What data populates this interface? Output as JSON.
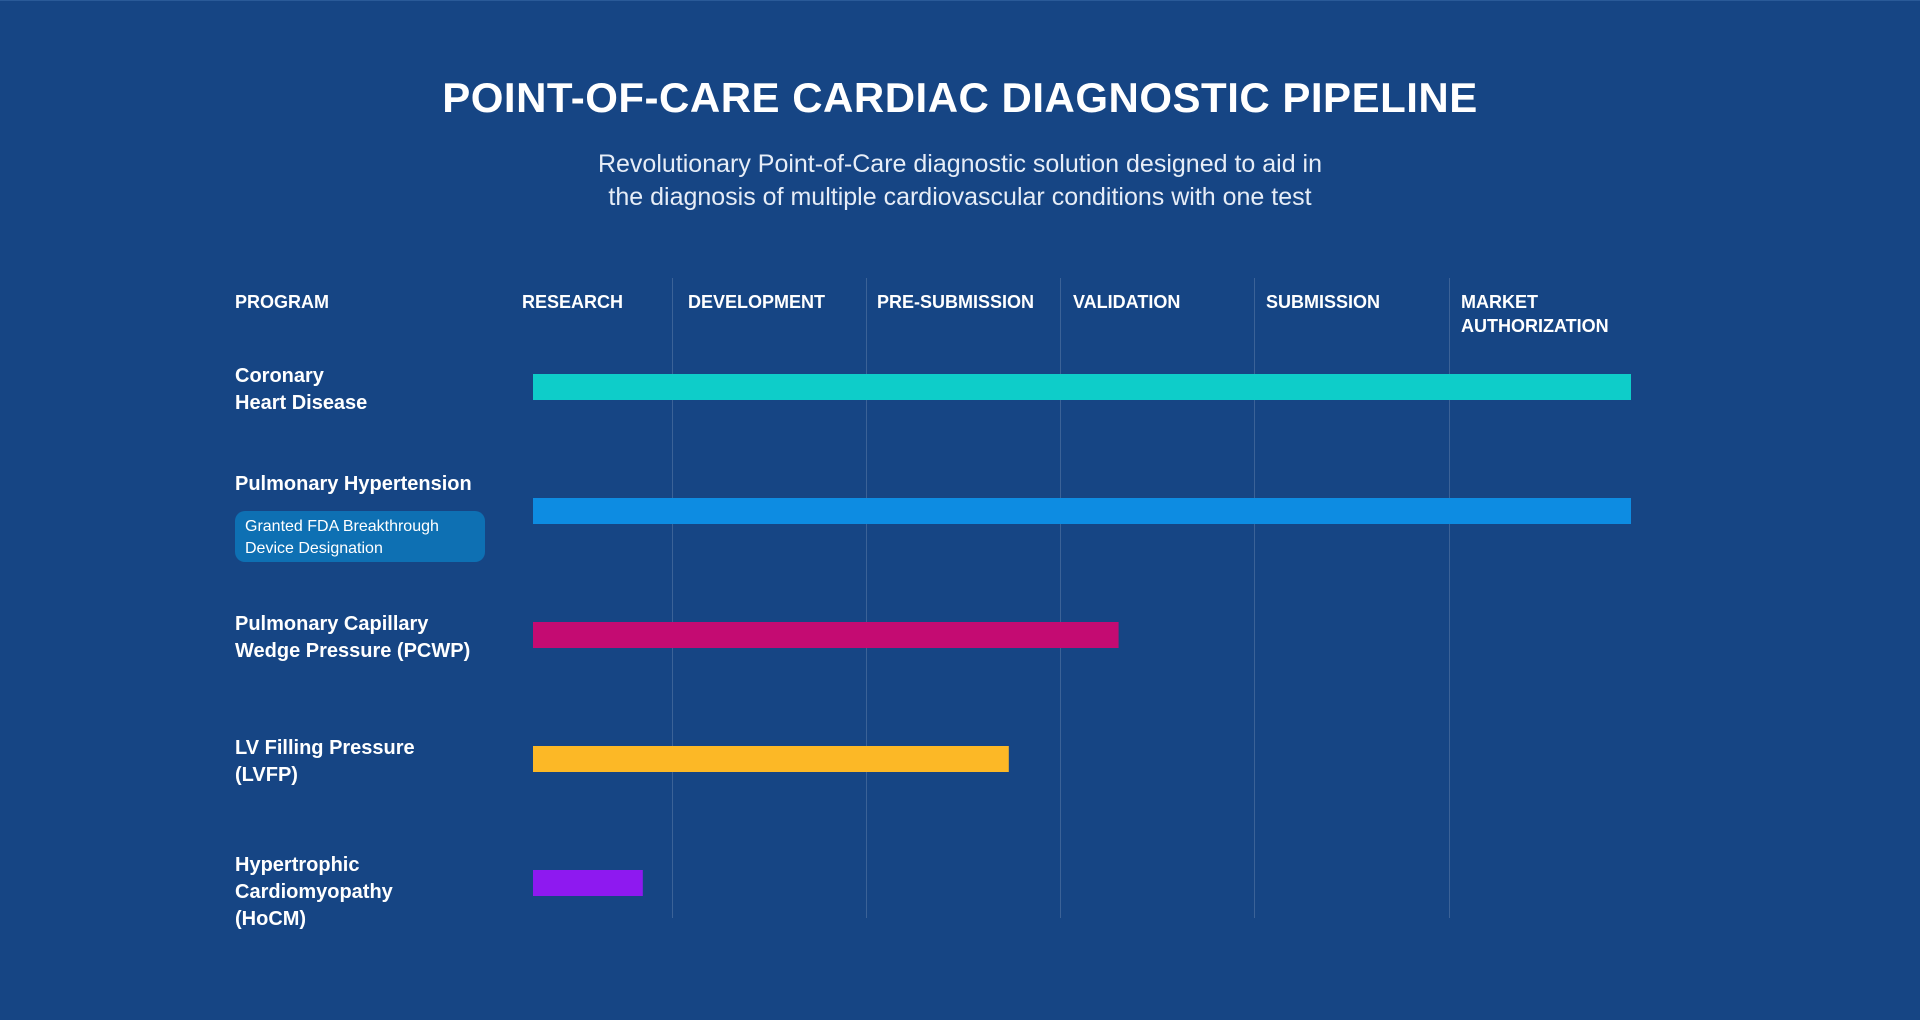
{
  "chart_data": {
    "type": "bar",
    "orientation": "horizontal",
    "title": "POINT-OF-CARE CARDIAC DIAGNOSTIC PIPELINE",
    "subtitle_lines": [
      "Revolutionary Point-of-Care diagnostic solution designed to aid in",
      "the diagnosis of multiple cardiovascular conditions with one test"
    ],
    "program_header": "PROGRAM",
    "stages": [
      {
        "label_lines": [
          "RESEARCH"
        ]
      },
      {
        "label_lines": [
          "DEVELOPMENT"
        ]
      },
      {
        "label_lines": [
          "PRE-SUBMISSION"
        ]
      },
      {
        "label_lines": [
          "VALIDATION"
        ]
      },
      {
        "label_lines": [
          "SUBMISSION"
        ]
      },
      {
        "label_lines": [
          "MARKET",
          "AUTHORIZATION"
        ]
      }
    ],
    "xlim": [
      0,
      6
    ],
    "unit": "stages completed",
    "programs": [
      {
        "name_lines": [
          "Coronary",
          "Heart Disease"
        ],
        "progress": 6.0,
        "color": "#0ecdc9",
        "badge_lines": []
      },
      {
        "name_lines": [
          "Pulmonary Hypertension"
        ],
        "progress": 6.0,
        "color": "#0d8ce2",
        "badge_lines": [
          "Granted FDA Breakthrough",
          "Device Designation"
        ]
      },
      {
        "name_lines": [
          "Pulmonary Capillary",
          "Wedge Pressure (PCWP)"
        ],
        "progress": 3.2,
        "color": "#c40b72",
        "badge_lines": []
      },
      {
        "name_lines": [
          "LV Filling Pressure",
          "(LVFP)"
        ],
        "progress": 2.6,
        "color": "#fcb826",
        "badge_lines": []
      },
      {
        "name_lines": [
          "Hypertrophic",
          "Cardiomyopathy",
          "(HoCM)"
        ],
        "progress": 0.6,
        "color": "#8e19f0",
        "badge_lines": []
      }
    ]
  }
}
